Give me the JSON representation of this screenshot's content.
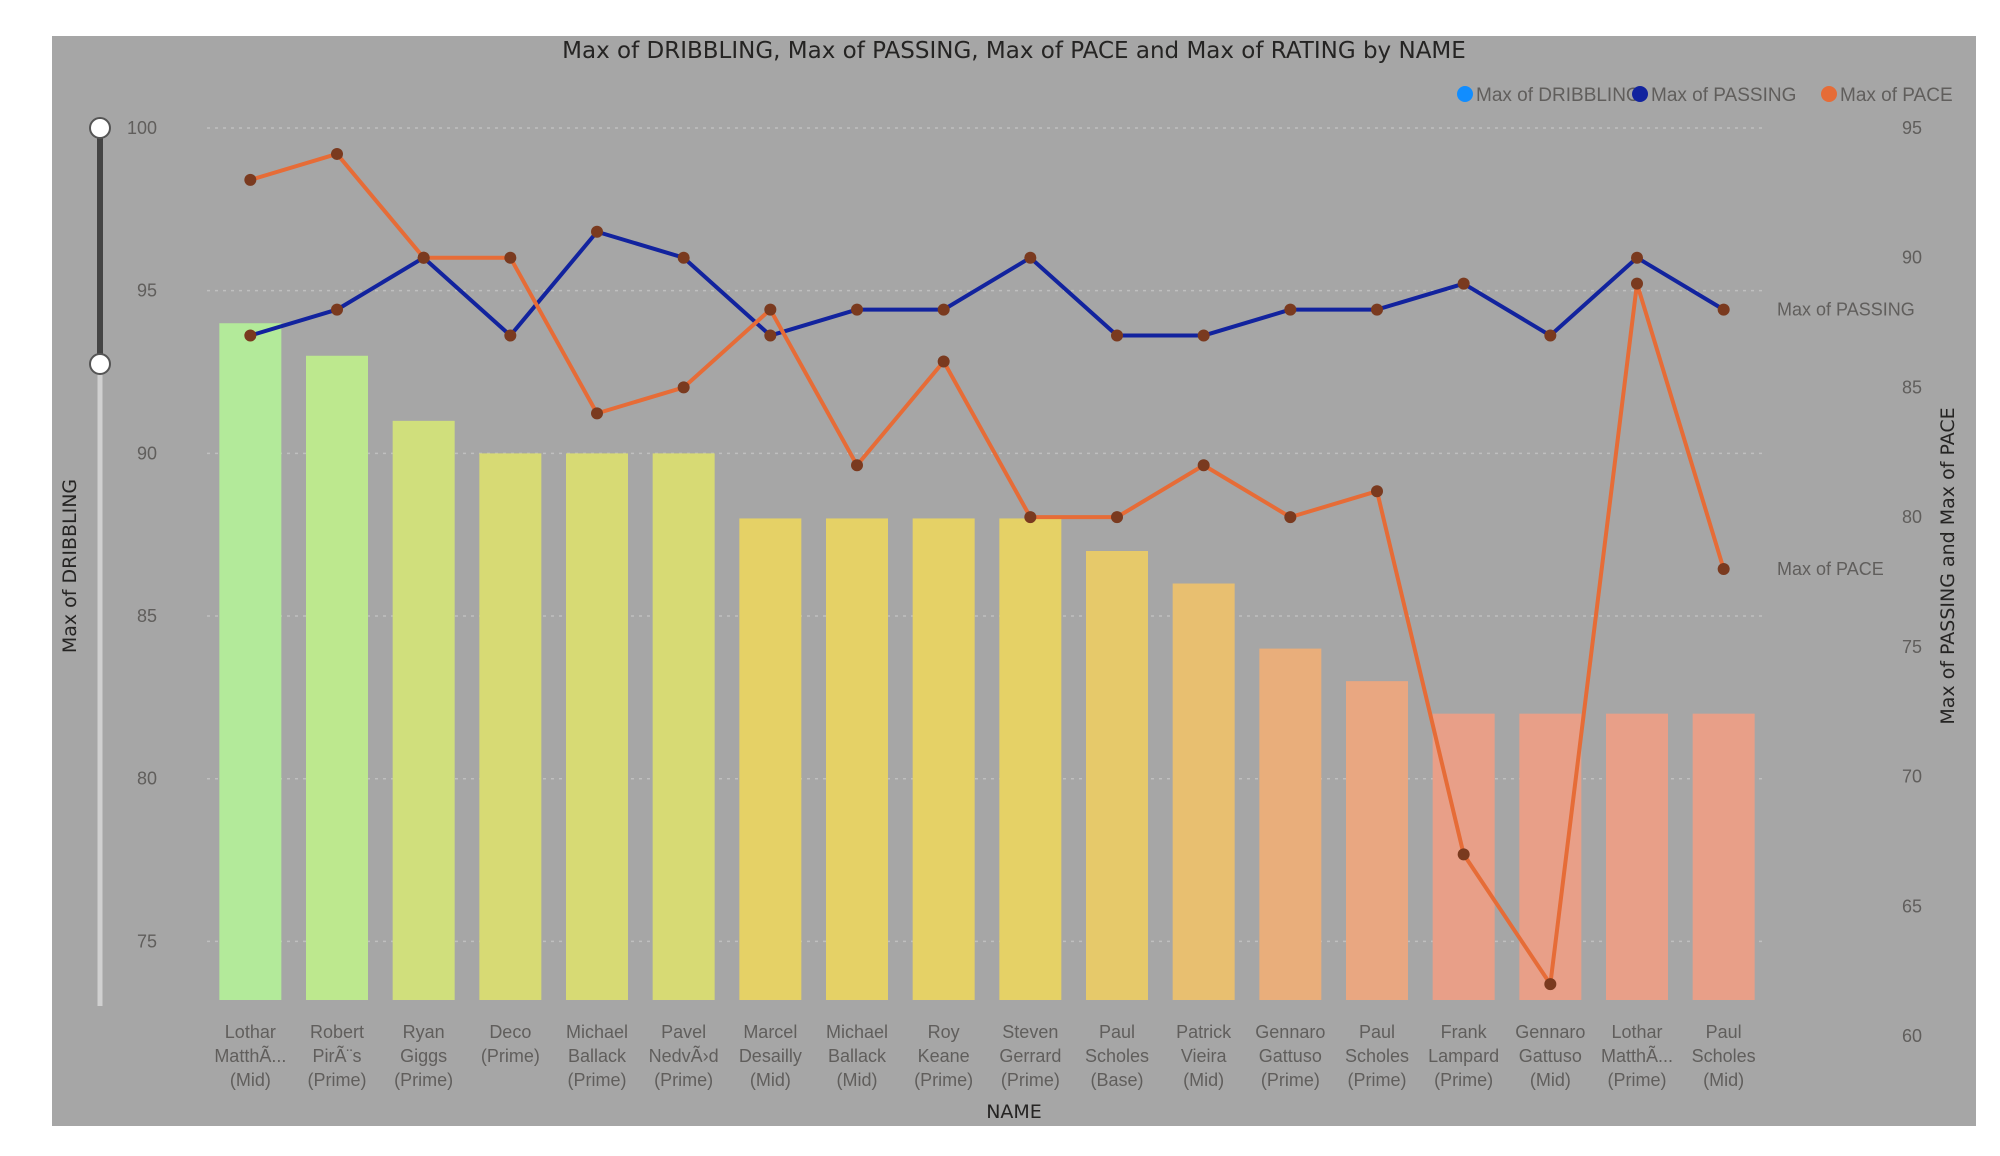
{
  "chart_data": {
    "type": "bar",
    "title": "Max of DRIBBLING, Max of PASSING, Max of PACE and Max of RATING by NAME",
    "xlabel": "NAME",
    "ylabel": "Max of DRIBBLING",
    "y2label": "Max of PASSING and Max of PACE",
    "legend_position": "top-right",
    "grid": true,
    "y_ticks": [
      75,
      80,
      85,
      90,
      95,
      100
    ],
    "y2_ticks": [
      60,
      65,
      70,
      75,
      80,
      85,
      90,
      95
    ],
    "ylim": [
      73.2,
      100
    ],
    "y2lim": [
      60,
      95
    ],
    "categories": [
      [
        "Lothar",
        "MatthÃ...",
        "(Mid)"
      ],
      [
        "Robert",
        "PirÃ¨s",
        "(Prime)"
      ],
      [
        "Ryan",
        "Giggs",
        "(Prime)"
      ],
      [
        "Deco",
        "(Prime)"
      ],
      [
        "Michael",
        "Ballack",
        "(Prime)"
      ],
      [
        "Pavel",
        "NedvÃ›d",
        "(Prime)"
      ],
      [
        "Marcel",
        "Desailly",
        "(Mid)"
      ],
      [
        "Michael",
        "Ballack",
        "(Mid)"
      ],
      [
        "Roy",
        "Keane",
        "(Prime)"
      ],
      [
        "Steven",
        "Gerrard",
        "(Prime)"
      ],
      [
        "Paul",
        "Scholes",
        "(Base)"
      ],
      [
        "Patrick",
        "Vieira",
        "(Mid)"
      ],
      [
        "Gennaro",
        "Gattuso",
        "(Prime)"
      ],
      [
        "Paul",
        "Scholes",
        "(Prime)"
      ],
      [
        "Frank",
        "Lampard",
        "(Prime)"
      ],
      [
        "Gennaro",
        "Gattuso",
        "(Mid)"
      ],
      [
        "Lothar",
        "MatthÃ...",
        "(Prime)"
      ],
      [
        "Paul",
        "Scholes",
        "(Mid)"
      ]
    ],
    "series": [
      {
        "name": "Max of DRIBBLING",
        "kind": "bar",
        "axis": "left",
        "color": "#118dff",
        "values": [
          94,
          93,
          91,
          90,
          90,
          90,
          88,
          88,
          88,
          88,
          87,
          86,
          84,
          83,
          82,
          82,
          82,
          82
        ]
      },
      {
        "name": "Max of PASSING",
        "kind": "line",
        "axis": "right",
        "color": "#12239e",
        "values": [
          87,
          88,
          90,
          87,
          91,
          90,
          87,
          88,
          88,
          90,
          87,
          87,
          88,
          88,
          89,
          87,
          90,
          88
        ]
      },
      {
        "name": "Max of PACE",
        "kind": "line",
        "axis": "right",
        "color": "#e66c37",
        "values": [
          93,
          94,
          90,
          90,
          84,
          85,
          88,
          82,
          86,
          80,
          80,
          82,
          80,
          81,
          67,
          62,
          89,
          78
        ]
      }
    ],
    "bar_color_scale": {
      "measure": "Max of RATING",
      "colors": [
        "#b3ea9a",
        "#bde88e",
        "#d0df7c",
        "#d7da74",
        "#d7da74",
        "#d7da74",
        "#e5d166",
        "#e5d166",
        "#e5d166",
        "#e5d166",
        "#e6c96a",
        "#e8bf70",
        "#e9ae7b",
        "#e9a781",
        "#e89f88",
        "#e89f88",
        "#e89f88",
        "#e89f88"
      ]
    },
    "marker_color": "#7a3a1f"
  },
  "slider": {
    "track_color": "#444444",
    "inactive_track_color": "#d0d0d0",
    "handle_color": "#ffffff"
  }
}
